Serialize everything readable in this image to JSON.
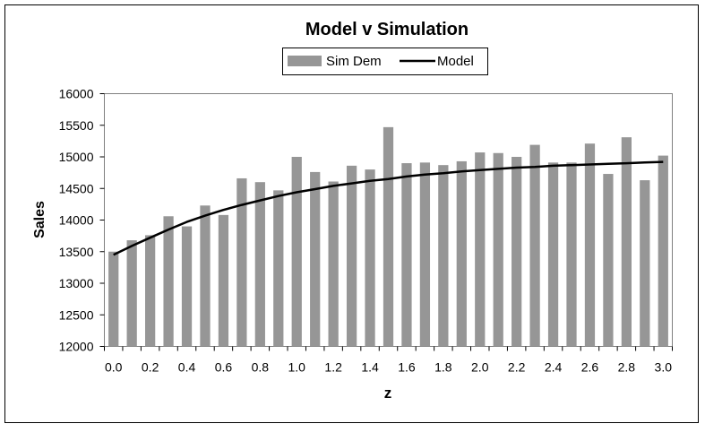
{
  "chart_data": {
    "type": "bar",
    "title": "Model v Simulation",
    "xlabel": "z",
    "ylabel": "Sales",
    "ylim": [
      12000,
      16000
    ],
    "yticks": [
      12000,
      12500,
      13000,
      13500,
      14000,
      14500,
      15000,
      15500,
      16000
    ],
    "ytick_labels": [
      "12000",
      "12500",
      "13000",
      "13500",
      "14000",
      "14500",
      "15000",
      "15500",
      "16000"
    ],
    "categories": [
      "0.0",
      "0.1",
      "0.2",
      "0.3",
      "0.4",
      "0.5",
      "0.6",
      "0.7",
      "0.8",
      "0.9",
      "1.0",
      "1.1",
      "1.2",
      "1.3",
      "1.4",
      "1.5",
      "1.6",
      "1.7",
      "1.8",
      "1.9",
      "2.0",
      "2.1",
      "2.2",
      "2.3",
      "2.4",
      "2.5",
      "2.6",
      "2.7",
      "2.8",
      "2.9",
      "3.0"
    ],
    "xtick_labels": [
      "0.0",
      "",
      "0.2",
      "",
      "0.4",
      "",
      "0.6",
      "",
      "0.8",
      "",
      "1.0",
      "",
      "1.2",
      "",
      "1.4",
      "",
      "1.6",
      "",
      "1.8",
      "",
      "2.0",
      "",
      "2.2",
      "",
      "2.4",
      "",
      "2.6",
      "",
      "2.8",
      "",
      "3.0"
    ],
    "grid": false,
    "legend_position": "top-center",
    "series": [
      {
        "name": "Sim Dem",
        "type": "bar",
        "color": "#969696",
        "values": [
          13500,
          13680,
          13760,
          14060,
          13900,
          14230,
          14080,
          14660,
          14600,
          14470,
          15000,
          14760,
          14610,
          14860,
          14800,
          15470,
          14900,
          14910,
          14870,
          14930,
          15070,
          15060,
          15000,
          15190,
          14910,
          14910,
          15210,
          14730,
          15310,
          14630,
          15020
        ]
      },
      {
        "name": "Model",
        "type": "line",
        "color": "#000000",
        "values": [
          13450,
          13590,
          13720,
          13850,
          13970,
          14070,
          14160,
          14240,
          14310,
          14380,
          14440,
          14490,
          14540,
          14580,
          14620,
          14650,
          14690,
          14720,
          14740,
          14770,
          14790,
          14810,
          14830,
          14840,
          14860,
          14870,
          14880,
          14890,
          14900,
          14910,
          14920
        ]
      }
    ]
  }
}
